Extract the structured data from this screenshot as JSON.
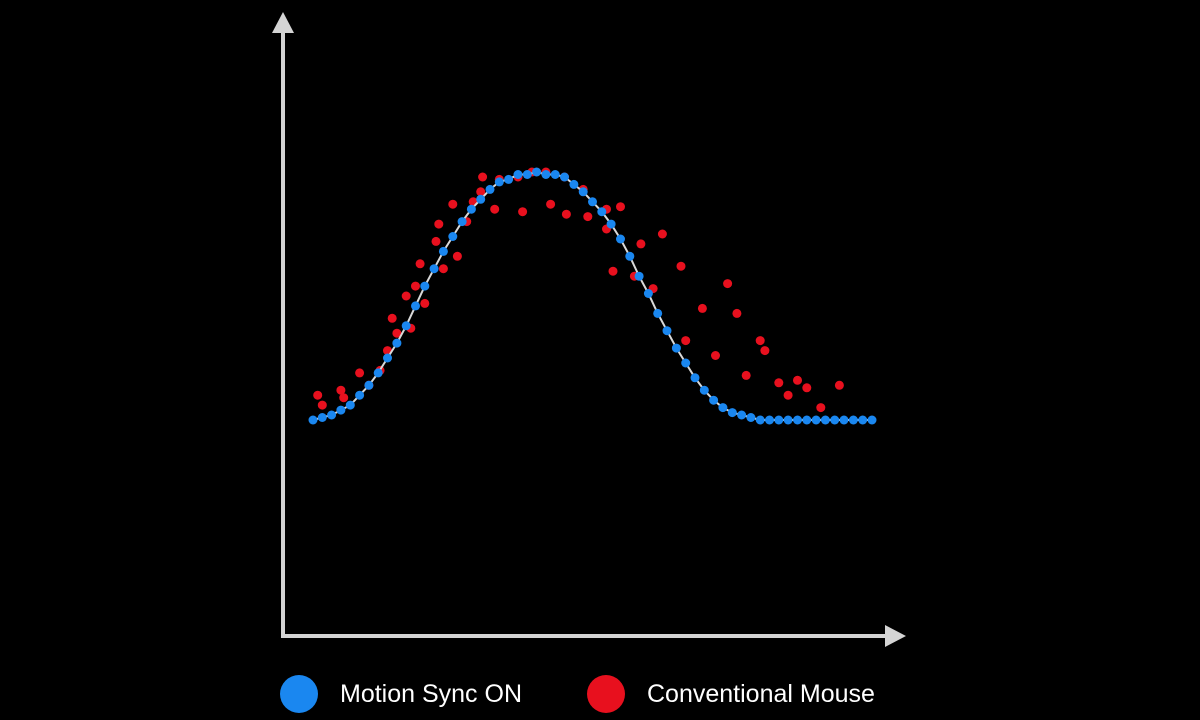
{
  "chart_data": {
    "type": "scatter",
    "title": "",
    "xlabel": "",
    "ylabel": "",
    "xlim": [
      0,
      60
    ],
    "ylim": [
      0,
      1
    ],
    "grid": false,
    "legend_position": "bottom",
    "series": [
      {
        "name": "Motion Sync ON",
        "color": "#1a87f0",
        "show_fit_line": true,
        "line_color": "#d9d9d9",
        "x": [
          0,
          1,
          2,
          3,
          4,
          5,
          6,
          7,
          8,
          9,
          10,
          11,
          12,
          13,
          14,
          15,
          16,
          17,
          18,
          19,
          20,
          21,
          22,
          23,
          24,
          25,
          26,
          27,
          28,
          29,
          30,
          31,
          32,
          33,
          34,
          35,
          36,
          37,
          38,
          39,
          40,
          41,
          42,
          43,
          44,
          45,
          46,
          47,
          48,
          49,
          50,
          51,
          52,
          53,
          54,
          55,
          56,
          57,
          58,
          59,
          60
        ],
        "y": [
          0.0,
          0.01,
          0.02,
          0.04,
          0.06,
          0.1,
          0.14,
          0.19,
          0.25,
          0.31,
          0.38,
          0.46,
          0.54,
          0.61,
          0.68,
          0.74,
          0.8,
          0.85,
          0.89,
          0.93,
          0.96,
          0.97,
          0.99,
          0.99,
          1.0,
          0.99,
          0.99,
          0.98,
          0.95,
          0.92,
          0.88,
          0.84,
          0.79,
          0.73,
          0.66,
          0.58,
          0.51,
          0.43,
          0.36,
          0.29,
          0.23,
          0.17,
          0.12,
          0.08,
          0.05,
          0.03,
          0.02,
          0.01,
          0.0,
          0.0,
          0.0,
          0.0,
          0.0,
          0.0,
          0.0,
          0.0,
          0.0,
          0.0,
          0.0,
          0.0,
          0.0
        ]
      },
      {
        "name": "Conventional Mouse",
        "color": "#e8101e",
        "x": [
          0.5,
          1,
          3,
          3.3,
          5,
          6,
          7.2,
          8,
          8.5,
          9,
          10,
          10.5,
          11,
          11.5,
          12,
          13.2,
          13.5,
          14,
          15,
          15.5,
          16.5,
          17.2,
          18,
          18.2,
          19.5,
          20,
          22,
          22.5,
          23.5,
          25,
          25.5,
          27,
          27.2,
          29,
          29.5,
          31.5,
          31.5,
          32.2,
          33,
          34.5,
          35.2,
          36.5,
          37.5,
          39.5,
          40,
          41.8,
          43.2,
          44.5,
          45.5,
          46.5,
          48,
          48.5,
          50,
          51,
          52,
          53,
          54.5,
          56.5
        ],
        "y": [
          0.1,
          0.06,
          0.12,
          0.09,
          0.19,
          0.14,
          0.2,
          0.28,
          0.41,
          0.35,
          0.5,
          0.37,
          0.54,
          0.63,
          0.47,
          0.72,
          0.79,
          0.61,
          0.87,
          0.66,
          0.8,
          0.88,
          0.92,
          0.98,
          0.85,
          0.97,
          0.98,
          0.84,
          1.0,
          1.0,
          0.87,
          0.98,
          0.83,
          0.93,
          0.82,
          0.85,
          0.77,
          0.6,
          0.86,
          0.58,
          0.71,
          0.53,
          0.75,
          0.62,
          0.32,
          0.45,
          0.26,
          0.55,
          0.43,
          0.18,
          0.32,
          0.28,
          0.15,
          0.1,
          0.16,
          0.13,
          0.05,
          0.14
        ]
      }
    ]
  },
  "legend": {
    "items": [
      {
        "label": "Motion Sync ON",
        "color": "#1a87f0"
      },
      {
        "label": "Conventional Mouse",
        "color": "#e8101e"
      }
    ]
  }
}
